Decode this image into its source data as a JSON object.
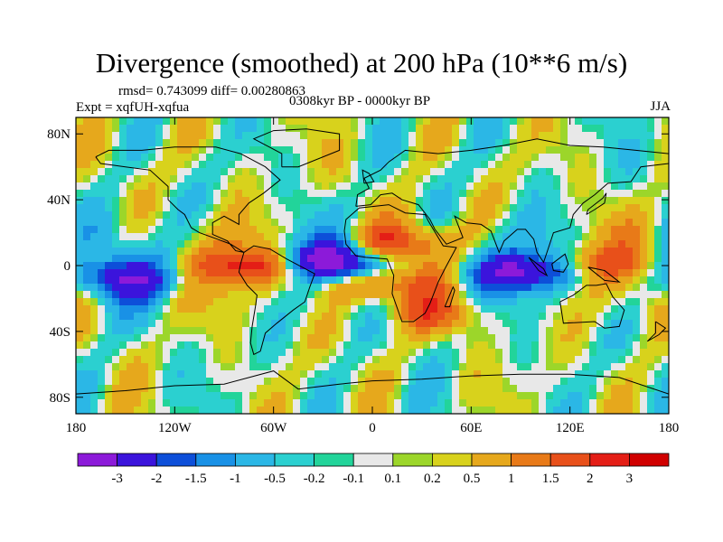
{
  "header": {
    "title": "Divergence (smoothed) at 200 hPa (10**6 m/s)",
    "stats": "rmsd= 0.743099 diff= 0.00280863",
    "period": "0308kyr BP - 0000kyr BP",
    "experiment": "Expt = xqfUH-xqfua",
    "season": "JJA"
  },
  "map": {
    "projection": "cylindrical equidistant",
    "lon_range": [
      -180,
      180
    ],
    "lat_range": [
      -90,
      90
    ],
    "x_ticks": [
      "180",
      "120W",
      "60W",
      "0",
      "60E",
      "120E",
      "180"
    ],
    "y_ticks": [
      "80N",
      "40N",
      "0",
      "40S",
      "80S"
    ],
    "x_tick_values": [
      -180,
      -120,
      -60,
      0,
      60,
      120,
      180
    ],
    "y_tick_values": [
      80,
      40,
      0,
      -40,
      -80
    ]
  },
  "colorbar": {
    "levels": [
      "-3",
      "-2",
      "-1.5",
      "-1",
      "-0.5",
      "-0.2",
      "-0.1",
      "0.1",
      "0.2",
      "0.5",
      "1",
      "1.5",
      "2",
      "3"
    ],
    "colors": [
      "#8c1ad9",
      "#3b14dc",
      "#0d4fd9",
      "#1991e6",
      "#2bb7e6",
      "#2bd0d0",
      "#22d49a",
      "#e8e8e8",
      "#9cd62a",
      "#d8d21c",
      "#e6a81c",
      "#e87a18",
      "#e8501a",
      "#e41e16",
      "#d00000"
    ]
  },
  "features": [
    {
      "name": "african-atlantic-minimum",
      "lon": -20,
      "lat": 0,
      "value": -3
    },
    {
      "name": "indian-ocean-minimum",
      "lon": 95,
      "lat": -3,
      "value": -3
    },
    {
      "name": "atlantic-maximum",
      "lon": -5,
      "lat": -10,
      "value": 2
    },
    {
      "name": "south-america-maximum",
      "lon": -70,
      "lat": 0,
      "value": 2
    },
    {
      "name": "pacific-minimum",
      "lon": -150,
      "lat": -8,
      "value": -2
    },
    {
      "name": "sahara-maximum",
      "lon": 10,
      "lat": 14,
      "value": 1.5
    },
    {
      "name": "maritime-continent-maximum",
      "lon": 125,
      "lat": 0,
      "value": 1.5
    },
    {
      "name": "southern-ocean-maximum",
      "lon": 40,
      "lat": -30,
      "value": 1
    }
  ]
}
